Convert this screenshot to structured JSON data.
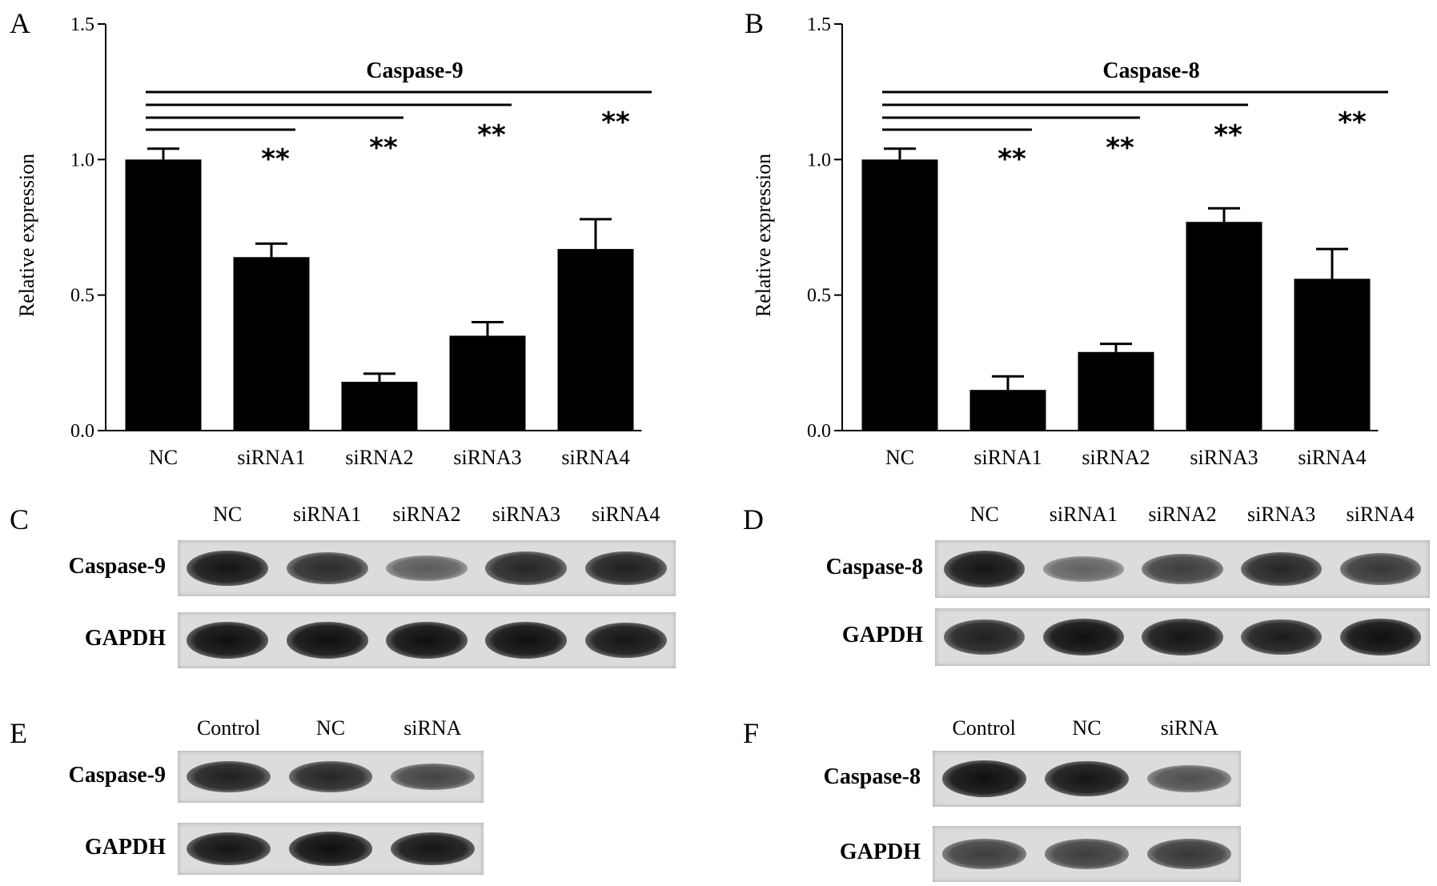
{
  "chart_data": [
    {
      "panel": "A",
      "type": "bar",
      "title": "Caspase-9",
      "ylabel": "Relative expression",
      "ylim": [
        0,
        1.5
      ],
      "yticks": [
        "0.0",
        "0.5",
        "1.0",
        "1.5"
      ],
      "categories": [
        "NC",
        "siRNA1",
        "siRNA2",
        "siRNA3",
        "siRNA4"
      ],
      "values": [
        1.0,
        0.64,
        0.18,
        0.35,
        0.67
      ],
      "errors": [
        0.04,
        0.05,
        0.03,
        0.05,
        0.11
      ],
      "significance": [
        "",
        "**",
        "**",
        "**",
        "**"
      ],
      "grid": false,
      "legend": "none"
    },
    {
      "panel": "B",
      "type": "bar",
      "title": "Caspase-8",
      "ylabel": "Relative expression",
      "ylim": [
        0,
        1.5
      ],
      "yticks": [
        "0.0",
        "0.5",
        "1.0",
        "1.5"
      ],
      "categories": [
        "NC",
        "siRNA1",
        "siRNA2",
        "siRNA3",
        "siRNA4"
      ],
      "values": [
        1.0,
        0.15,
        0.29,
        0.77,
        0.56
      ],
      "errors": [
        0.04,
        0.05,
        0.03,
        0.05,
        0.11
      ],
      "significance": [
        "",
        "**",
        "**",
        "**",
        "**"
      ],
      "grid": false,
      "legend": "none"
    }
  ],
  "blots": {
    "C": {
      "letter": "C",
      "lanes": [
        "NC",
        "siRNA1",
        "siRNA2",
        "siRNA3",
        "siRNA4"
      ],
      "rows": [
        {
          "label": "Caspase-9",
          "intensity": [
            0.95,
            0.75,
            0.35,
            0.8,
            0.85
          ]
        },
        {
          "label": "GAPDH",
          "intensity": [
            1.0,
            1.0,
            1.0,
            1.0,
            0.95
          ]
        }
      ]
    },
    "D": {
      "letter": "D",
      "lanes": [
        "NC",
        "siRNA1",
        "siRNA2",
        "siRNA3",
        "siRNA4"
      ],
      "rows": [
        {
          "label": "Caspase-8",
          "intensity": [
            0.95,
            0.3,
            0.6,
            0.8,
            0.65
          ]
        },
        {
          "label": "GAPDH",
          "intensity": [
            0.85,
            1.0,
            0.95,
            0.9,
            1.0
          ]
        }
      ]
    },
    "E": {
      "letter": "E",
      "lanes": [
        "Control",
        "NC",
        "siRNA"
      ],
      "rows": [
        {
          "label": "Caspase-9",
          "intensity": [
            0.85,
            0.8,
            0.55
          ]
        },
        {
          "label": "GAPDH",
          "intensity": [
            0.95,
            1.0,
            0.95
          ]
        }
      ]
    },
    "F": {
      "letter": "F",
      "lanes": [
        "Control",
        "NC",
        "siRNA"
      ],
      "rows": [
        {
          "label": "Caspase-8",
          "intensity": [
            1.0,
            0.95,
            0.45
          ]
        },
        {
          "label": "GAPDH",
          "intensity": [
            0.6,
            0.6,
            0.65
          ]
        }
      ]
    }
  }
}
